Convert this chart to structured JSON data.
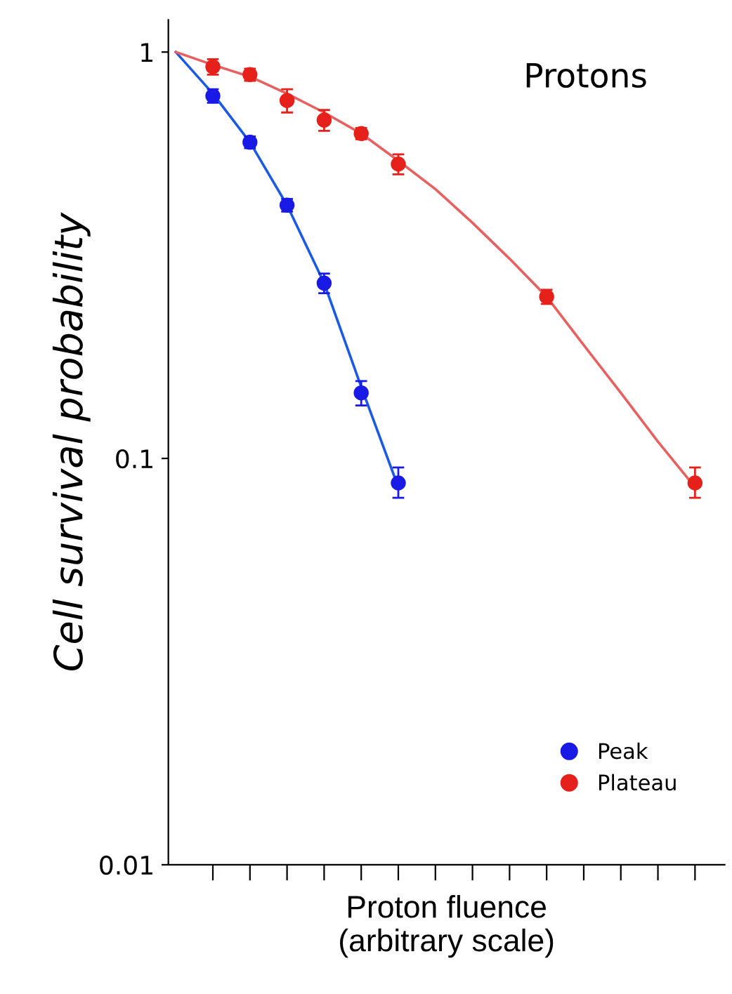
{
  "chart_data": {
    "type": "scatter",
    "xlabel": "Proton fluence\n(arbitrary scale)",
    "ylabel": "Cell survival probability",
    "categories": [
      null,
      null,
      null,
      null,
      null,
      null,
      null,
      null,
      null,
      null,
      null,
      null,
      null,
      null,
      null
    ],
    "log": "y",
    "ylim": [
      0.01,
      1.2
    ],
    "yticks": [
      0.01,
      0.1,
      1
    ],
    "legend": "bottom right",
    "grid": false,
    "tick_labels": "y",
    "annotations": [
      "Protons"
    ],
    "series": [
      {
        "name": "Peak",
        "color": "#1a1ae6",
        "marker": "circle",
        "values": [
          null,
          0.78,
          0.6,
          0.42,
          0.27,
          0.145,
          0.087,
          null,
          null,
          null,
          null,
          null,
          null,
          null,
          null
        ],
        "errors": [
          null,
          0.03,
          0.02,
          0.015,
          0.015,
          0.01,
          [
            0.08,
            0.095
          ],
          null,
          null,
          null,
          null,
          null,
          null,
          null,
          null
        ]
      },
      {
        "name": "Plateau",
        "color": "#e6201a",
        "marker": "circle",
        "values": [
          null,
          0.92,
          0.88,
          0.76,
          0.68,
          0.63,
          0.53,
          null,
          null,
          null,
          0.25,
          null,
          null,
          null,
          0.087
        ],
        "errors": [
          null,
          0.04,
          0.03,
          [
            0.71,
            0.81
          ],
          0.04,
          0.02,
          0.03,
          null,
          null,
          null,
          0.01,
          null,
          null,
          null,
          [
            0.08,
            0.095
          ]
        ]
      },
      {
        "color": "#1a5ae6",
        "type": "line",
        "marker": "none",
        "line_style": "solid",
        "values": [
          1,
          0.79,
          0.6,
          0.42,
          0.27,
          0.15,
          0.085,
          null,
          null,
          null,
          null,
          null,
          null,
          null,
          null
        ]
      },
      {
        "color": "#e86060",
        "type": "line",
        "marker": "none",
        "line_style": "solid",
        "values": [
          1,
          0.93,
          0.87,
          0.79,
          0.71,
          0.63,
          0.54,
          0.46,
          0.38,
          0.31,
          0.25,
          0.19,
          0.145,
          0.11,
          0.085
        ]
      }
    ]
  }
}
